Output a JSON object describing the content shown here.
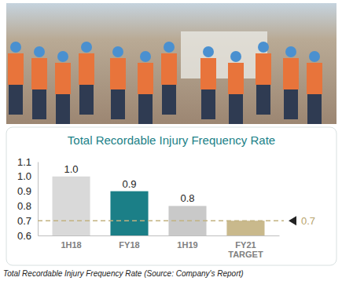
{
  "chart_data": {
    "type": "bar",
    "title": "Total Recordable Injury Frequency Rate",
    "caption": "Total Recordable Injury Frequency Rate (Source: Company's Report)",
    "categories": [
      "1H18",
      "FY18",
      "1H19",
      "FY21 TARGET"
    ],
    "values": [
      1.0,
      0.9,
      0.8,
      0.7
    ],
    "value_labels": [
      "1.0",
      "0.9",
      "0.8",
      null
    ],
    "colors": [
      "#d9d9d9",
      "#1b7f87",
      "#c9c9c9",
      "#c9b98c"
    ],
    "data_labels": true,
    "ylim": [
      0.6,
      1.1
    ],
    "yticks": [
      0.6,
      0.7,
      0.8,
      0.9,
      {
        "value": 1.0,
        "label": "1.0"
      },
      1.1
    ],
    "annotations": [
      {
        "y": 0.7
      }
    ],
    "grid": false
  }
}
